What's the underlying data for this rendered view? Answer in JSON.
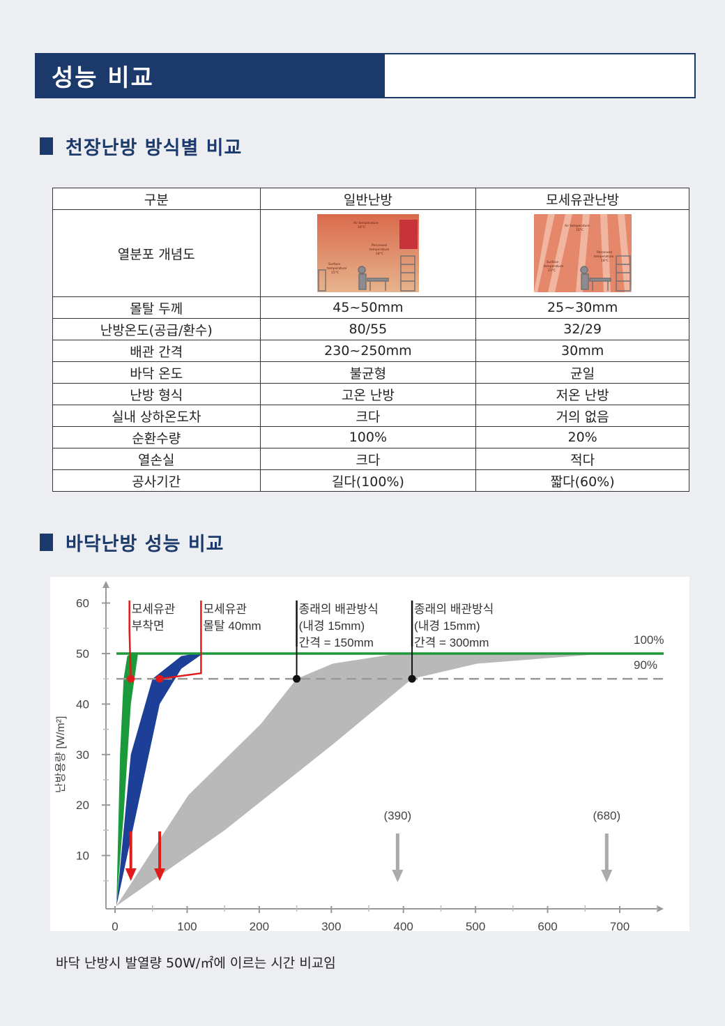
{
  "header": {
    "title": "성능 비교"
  },
  "section1": {
    "title": "천장난방 방식별 비교"
  },
  "table": {
    "headers": [
      "구분",
      "일반난방",
      "모세유관난방"
    ],
    "image_row_label": "열분포 개념도",
    "images": [
      {
        "name": "general-heating-diagram",
        "labels": [
          "Air temperature",
          "24°C",
          "Perceived",
          "temperature",
          "18°C",
          "Surface",
          "temperature",
          "15°C"
        ]
      },
      {
        "name": "capillary-heating-diagram",
        "labels": [
          "Air temperature",
          "15°C",
          "Perceived",
          "temperature",
          "18°C",
          "Surface",
          "temperature",
          "21°C"
        ]
      }
    ],
    "rows": [
      [
        "몰탈 두께",
        "45~50mm",
        "25~30mm"
      ],
      [
        "난방온도(공급/환수)",
        "80/55",
        "32/29"
      ],
      [
        "배관 간격",
        "230~250mm",
        "30mm"
      ],
      [
        "바닥 온도",
        "불균형",
        "균일"
      ],
      [
        "난방 형식",
        "고온 난방",
        "저온 난방"
      ],
      [
        "실내 상하온도차",
        "크다",
        "거의 없음"
      ],
      [
        "순환수량",
        "100%",
        "20%"
      ],
      [
        "열손실",
        "크다",
        "적다"
      ],
      [
        "공사기간",
        "길다(100%)",
        "짧다(60%)"
      ]
    ]
  },
  "section2": {
    "title": "바닥난방 성능 비교"
  },
  "chart_data": {
    "type": "area",
    "ylabel": "난방용량 [W/m²]",
    "xlabel": "",
    "xlim": [
      0,
      800
    ],
    "ylim": [
      0,
      65
    ],
    "x_ticks": [
      0,
      100,
      200,
      300,
      400,
      500,
      600,
      700
    ],
    "y_ticks": [
      10,
      20,
      30,
      40,
      50,
      60
    ],
    "reference_lines": [
      {
        "label": "100%",
        "y": 50,
        "color": "#1c9a3a",
        "style": "solid"
      },
      {
        "label": "90%",
        "y": 45,
        "color": "#9a9a9a",
        "style": "dashed"
      }
    ],
    "series": [
      {
        "color": "#1a9a3a",
        "upper": [
          [
            0,
            0
          ],
          [
            5,
            30
          ],
          [
            10,
            45
          ],
          [
            15,
            49.5
          ],
          [
            20,
            50
          ]
        ],
        "lower": [
          [
            0,
            0
          ],
          [
            10,
            18
          ],
          [
            20,
            40
          ],
          [
            30,
            50
          ]
        ]
      },
      {
        "color": "#1d3f98",
        "upper": [
          [
            0,
            0
          ],
          [
            20,
            30
          ],
          [
            50,
            45
          ],
          [
            90,
            49.5
          ],
          [
            110,
            50
          ]
        ],
        "lower": [
          [
            0,
            0
          ],
          [
            30,
            20
          ],
          [
            60,
            40
          ],
          [
            90,
            47
          ],
          [
            120,
            50
          ]
        ]
      },
      {
        "color": "#b9b9b9",
        "upper": [
          [
            0,
            0
          ],
          [
            100,
            22
          ],
          [
            200,
            36
          ],
          [
            250,
            45
          ],
          [
            300,
            48
          ],
          [
            390,
            50
          ]
        ],
        "lower": [
          [
            0,
            0
          ],
          [
            150,
            15
          ],
          [
            300,
            32
          ],
          [
            410,
            45
          ],
          [
            500,
            48
          ],
          [
            680,
            50
          ]
        ]
      }
    ],
    "annotations": [
      {
        "text": [
          "모세유관",
          "부착면"
        ],
        "x": 20,
        "marker_y": 45,
        "color": "#e01b1b",
        "arrow_color": "#e01b1b"
      },
      {
        "text": [
          "모세유관",
          "몰탈 40mm"
        ],
        "x": 60,
        "marker_y": 45,
        "color": "#e01b1b",
        "arrow_color": "#e01b1b"
      },
      {
        "text": [
          "종래의 배관방식",
          "(내경 15mm)",
          "간격 = 150mm"
        ],
        "x": 250,
        "marker_y": 45,
        "color": "#111111"
      },
      {
        "text": [
          "종래의 배관방식",
          "(내경 15mm)",
          "간격 = 300mm"
        ],
        "x": 410,
        "marker_y": 45,
        "color": "#111111"
      }
    ],
    "time_markers": [
      {
        "label": "(390)",
        "x": 390,
        "color": "#aaaaaa"
      },
      {
        "label": "(680)",
        "x": 680,
        "color": "#aaaaaa"
      }
    ],
    "red_arrows": [
      20,
      60
    ]
  },
  "caption": "바닥 난방시 발열량 50W/㎡에 이르는 시간 비교임"
}
